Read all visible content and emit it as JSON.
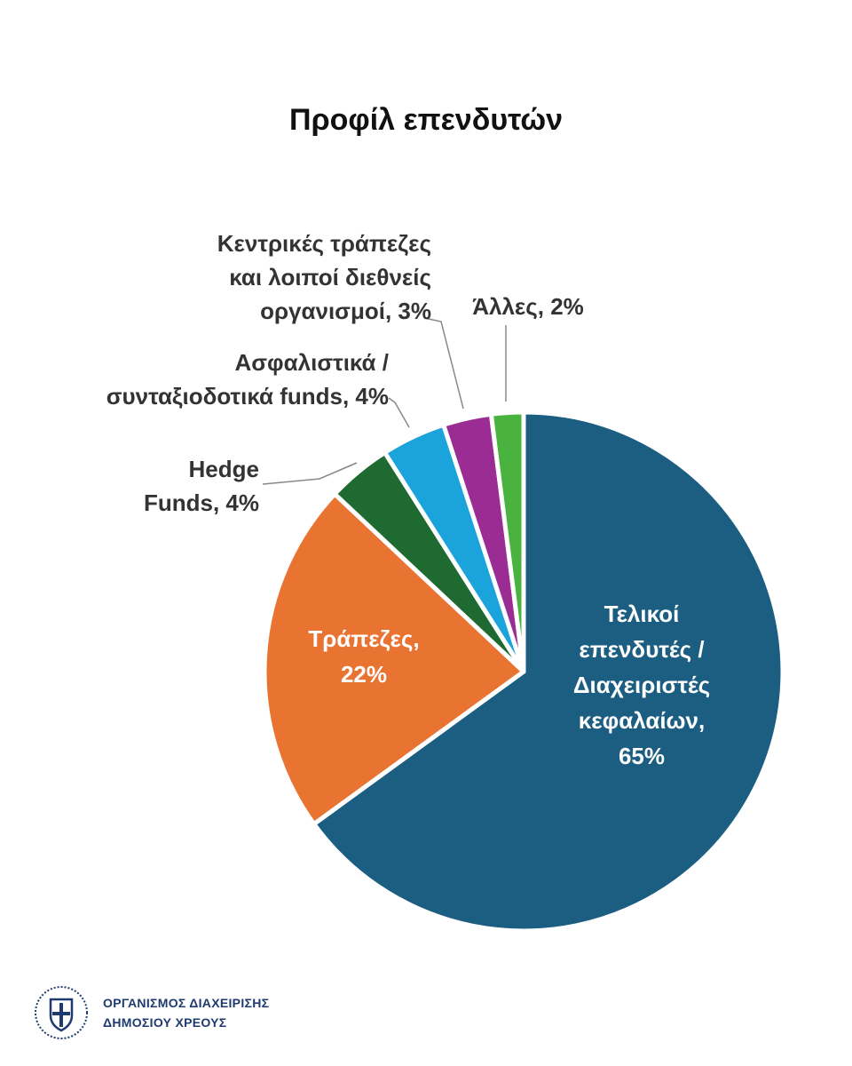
{
  "chart_data": {
    "type": "pie",
    "title": "Προφίλ επενδυτών",
    "slices": [
      {
        "lines": [
          "Τελικοί",
          "επενδυτές /",
          "Διαχειριστές",
          "κεφαλαίων,",
          "65%"
        ],
        "value": 65,
        "color": "#1b5e82",
        "label_position": "inside"
      },
      {
        "lines": [
          "Τράπεζες,",
          "22%"
        ],
        "value": 22,
        "color": "#e97432",
        "label_position": "inside"
      },
      {
        "lines": [
          "Hedge",
          "Funds, 4%"
        ],
        "value": 4,
        "color": "#1e6a30",
        "label_position": "outside"
      },
      {
        "lines": [
          "Ασφαλιστικά /",
          "συνταξιοδοτικά funds, 4%"
        ],
        "value": 4,
        "color": "#1ba3dc",
        "label_position": "outside"
      },
      {
        "lines": [
          "Κεντρικές τράπεζες",
          "και λοιποί διεθνείς",
          "οργανισμοί, 3%"
        ],
        "value": 3,
        "color": "#9b2c93",
        "label_position": "outside"
      },
      {
        "lines": [
          "Άλλες, 2%"
        ],
        "value": 2,
        "color": "#4ab23f",
        "label_position": "outside"
      }
    ]
  },
  "footer": {
    "org_line1": "ΟΡΓΑΝΙΣΜΟΣ ΔΙΑΧΕΙΡΙΣΗΣ",
    "org_line2": "ΔΗΜΟΣΙΟΥ ΧΡΕΟΥΣ",
    "brand_color": "#1f3a6e"
  }
}
